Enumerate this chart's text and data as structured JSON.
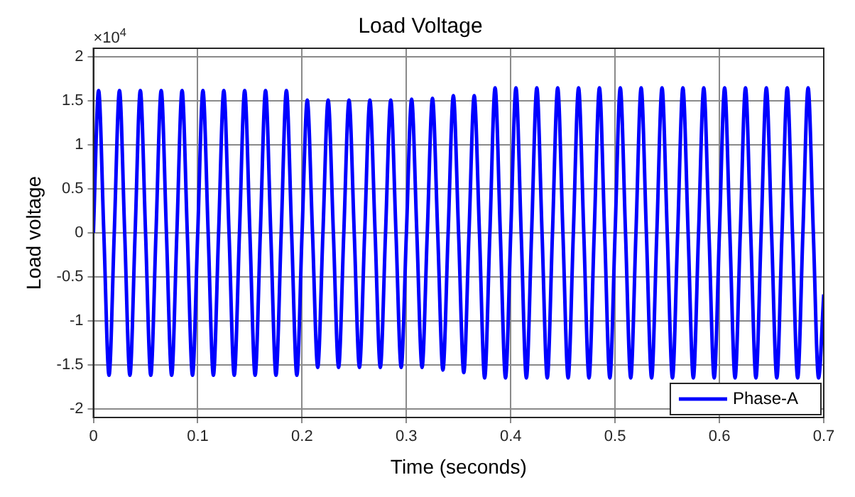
{
  "chart_data": {
    "type": "line",
    "title": "Load Voltage",
    "xlabel": "Time (seconds)",
    "ylabel": "Load voltage",
    "annotations": [
      "×10$^{4}$"
    ],
    "xlim": [
      0,
      0.7
    ],
    "xticks": [
      0,
      0.1,
      0.2,
      0.3,
      0.4,
      0.5,
      0.6,
      0.7
    ],
    "ylim": [
      -2.1,
      2.1
    ],
    "yticks": [
      -2,
      -1.5,
      -1,
      -0.5,
      0,
      0.5,
      1,
      1.5,
      2
    ],
    "grid": true,
    "legend": "bottom right",
    "marker": "none",
    "line_style": "solid",
    "x": [
      0,
      0.005,
      0.01,
      0.015,
      0.02,
      0.025,
      0.03,
      0.035,
      0.04,
      0.045,
      0.05,
      0.055,
      0.06,
      0.065,
      0.07,
      0.075,
      0.08,
      0.085,
      0.09,
      0.095,
      0.1,
      0.105,
      0.11,
      0.115,
      0.12,
      0.125,
      0.13,
      0.135,
      0.14,
      0.145,
      0.15,
      0.155,
      0.16,
      0.165,
      0.17,
      0.175,
      0.18,
      0.185,
      0.19,
      0.195,
      0.2,
      0.205,
      0.21,
      0.215,
      0.22,
      0.225,
      0.23,
      0.235,
      0.24,
      0.245,
      0.25,
      0.255,
      0.26,
      0.265,
      0.27,
      0.275,
      0.28,
      0.285,
      0.29,
      0.295,
      0.3,
      0.305,
      0.31,
      0.315,
      0.32,
      0.325,
      0.33,
      0.335,
      0.34,
      0.345,
      0.35,
      0.355,
      0.36,
      0.365,
      0.37,
      0.375,
      0.38,
      0.385,
      0.39,
      0.395,
      0.4,
      0.405,
      0.41,
      0.415,
      0.42,
      0.425,
      0.43,
      0.435,
      0.44,
      0.445,
      0.45,
      0.455,
      0.46,
      0.465,
      0.47,
      0.475,
      0.48,
      0.485,
      0.49,
      0.495,
      0.5,
      0.505,
      0.51,
      0.515,
      0.52,
      0.525,
      0.53,
      0.535,
      0.54,
      0.545,
      0.55,
      0.555,
      0.56,
      0.565,
      0.57,
      0.575,
      0.58,
      0.585,
      0.59,
      0.595,
      0.6,
      0.605,
      0.61,
      0.615,
      0.62,
      0.625,
      0.63,
      0.635,
      0.64,
      0.645,
      0.65,
      0.655,
      0.66,
      0.665,
      0.67,
      0.675,
      0.68,
      0.685,
      0.69,
      0.695,
      0.7
    ],
    "series": [
      {
        "name": "Phase-A",
        "color": "#0000ff",
        "values": [
          0,
          1.62,
          0,
          -1.62,
          0,
          1.62,
          0,
          -1.62,
          0,
          1.62,
          0,
          -1.62,
          0,
          1.62,
          0,
          -1.62,
          0,
          1.62,
          0,
          -1.62,
          0,
          1.62,
          0,
          -1.62,
          0,
          1.62,
          0,
          -1.62,
          0,
          1.62,
          0,
          -1.62,
          0,
          1.62,
          0,
          -1.62,
          0,
          1.62,
          0,
          -1.62,
          0,
          1.51,
          0,
          -1.53,
          0,
          1.51,
          0,
          -1.53,
          0,
          1.51,
          0,
          -1.53,
          0,
          1.51,
          0,
          -1.53,
          0,
          1.51,
          0,
          -1.53,
          0,
          1.52,
          0,
          -1.53,
          0,
          1.53,
          0,
          -1.56,
          0,
          1.56,
          0,
          -1.59,
          0,
          1.56,
          0,
          -1.65,
          0,
          1.65,
          0,
          -1.65,
          0,
          1.65,
          0,
          -1.65,
          0,
          1.65,
          0,
          -1.65,
          0,
          1.65,
          0,
          -1.65,
          0,
          1.65,
          0,
          -1.65,
          0,
          1.65,
          0,
          -1.65,
          0,
          1.65,
          0,
          -1.65,
          0,
          1.65,
          0,
          -1.65,
          0,
          1.65,
          0,
          -1.65,
          0,
          1.65,
          0,
          -1.65,
          0,
          1.65,
          0,
          -1.65,
          0,
          1.65,
          0,
          -1.65,
          0,
          1.65,
          0,
          -1.65,
          0,
          1.65,
          0,
          -1.65,
          0,
          1.65,
          0,
          -1.65,
          0,
          1.65,
          0,
          -1.65,
          -0.7
        ]
      }
    ]
  }
}
